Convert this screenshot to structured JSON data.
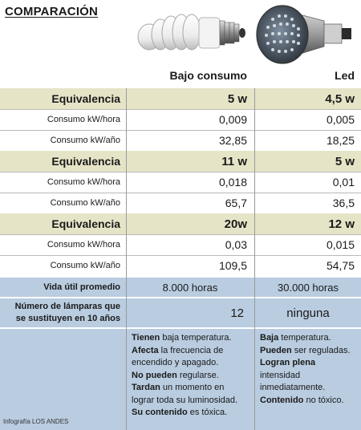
{
  "title": "COMPARACIÓN",
  "columns": {
    "bajo": "Bajo consumo",
    "led": "Led"
  },
  "groups": [
    {
      "equivalencia_label": "Equivalencia",
      "bajo_w": "5 w",
      "led_w": "4,5 w",
      "rows": [
        {
          "label": "Consumo kW/hora",
          "bajo": "0,009",
          "led": "0,005"
        },
        {
          "label": "Consumo kW/año",
          "bajo": "32,85",
          "led": "18,25"
        }
      ]
    },
    {
      "equivalencia_label": "Equivalencia",
      "bajo_w": "11 w",
      "led_w": "5 w",
      "rows": [
        {
          "label": "Consumo kW/hora",
          "bajo": "0,018",
          "led": "0,01"
        },
        {
          "label": "Consumo kW/año",
          "bajo": "65,7",
          "led": "36,5"
        }
      ]
    },
    {
      "equivalencia_label": "Equivalencia",
      "bajo_w": "20w",
      "led_w": "12 w",
      "rows": [
        {
          "label": "Consumo kW/hora",
          "bajo": "0,03",
          "led": "0,015"
        },
        {
          "label": "Consumo kW/año",
          "bajo": "109,5",
          "led": "54,75"
        }
      ]
    }
  ],
  "vida_util": {
    "label": "Vida útil promedio",
    "bajo": "8.000 horas",
    "led": "30.000 horas"
  },
  "sustituyen": {
    "label_1": "Número de lámparas que",
    "label_2": "se sustituyen en 10 años",
    "bajo": "12",
    "led": "ninguna"
  },
  "desc_bajo": [
    {
      "bold": "Tienen",
      "rest": " baja temperatura."
    },
    {
      "bold": "Afecta",
      "rest": " la frecuencia de encendido y apagado."
    },
    {
      "bold": "No pueden",
      "rest": " regularse."
    },
    {
      "bold": "Tardan",
      "rest": " un momento en lograr toda su luminosidad."
    },
    {
      "bold": "Su contenido",
      "rest": " es tóxica."
    }
  ],
  "desc_led": [
    {
      "bold": "Baja",
      "rest": " temperatura."
    },
    {
      "bold": "Pueden",
      "rest": " ser reguladas."
    },
    {
      "bold": "Logran plena",
      "rest": " intensidad inmediatamente."
    },
    {
      "bold": "Contenido",
      "rest": " no tóxico."
    }
  ],
  "credit": "Infografía LOS ANDES",
  "colors": {
    "equivalencia_bg": "#e6e4c7",
    "blue_bg": "#b9cce0"
  }
}
